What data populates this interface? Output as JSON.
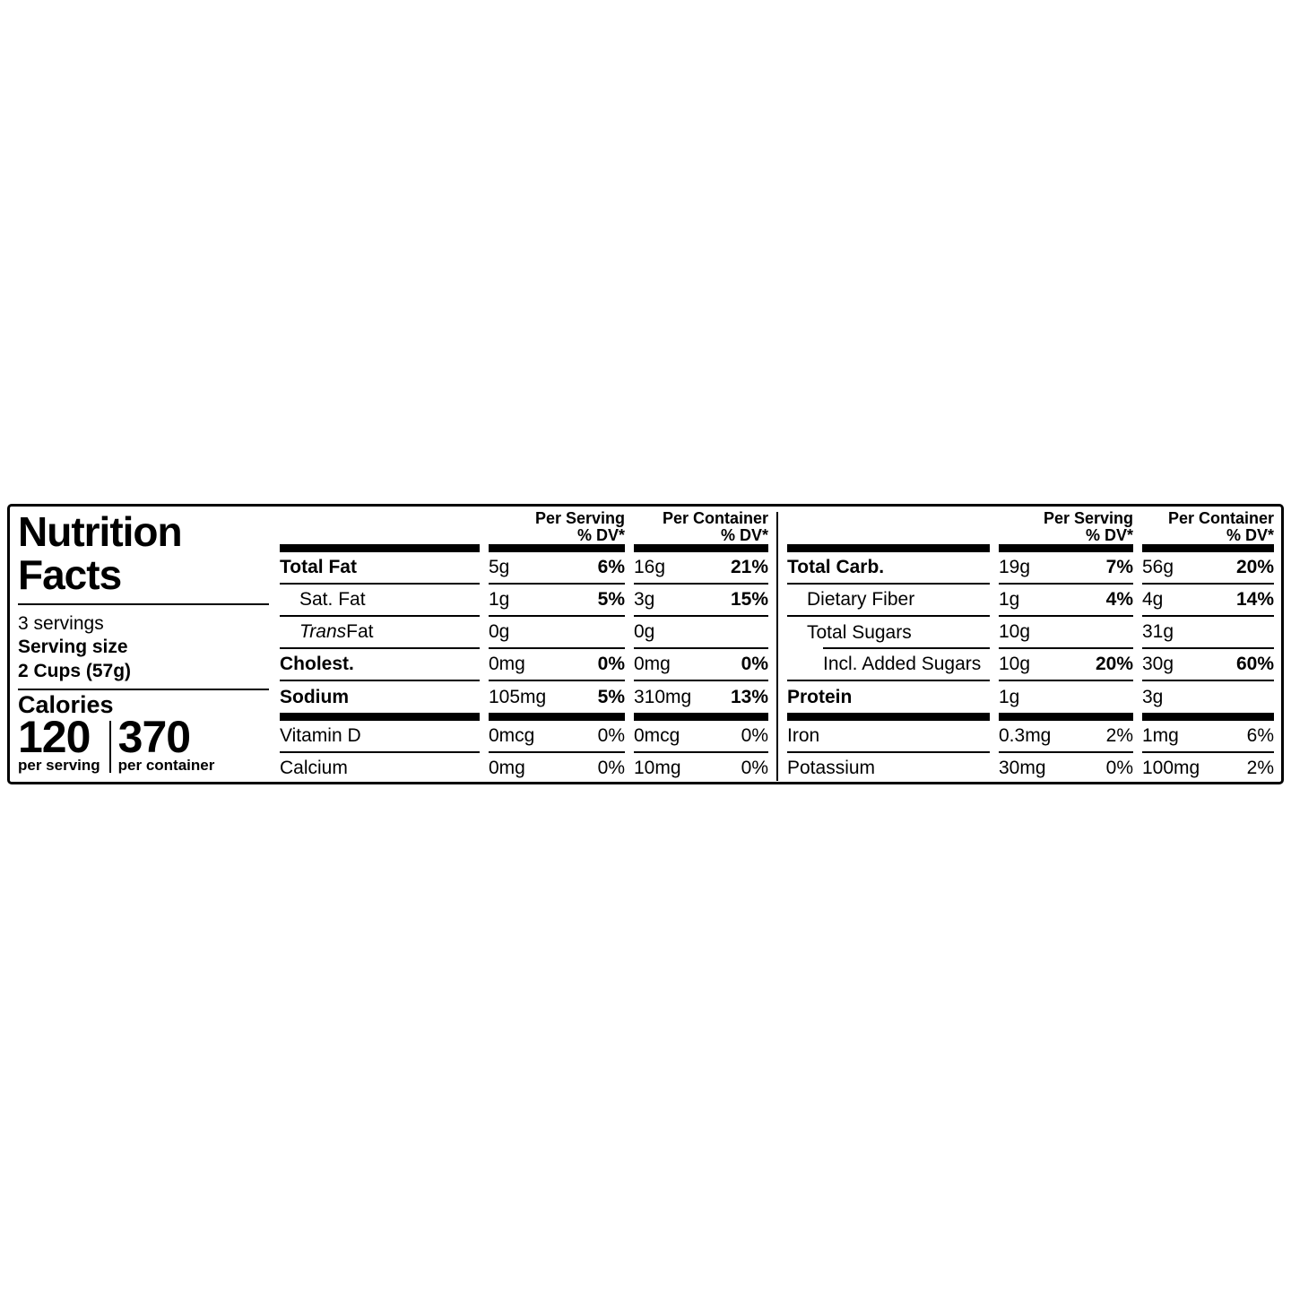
{
  "colors": {
    "text": "#000000",
    "background": "#ffffff",
    "border": "#000000"
  },
  "label": {
    "title_line1": "Nutrition",
    "title_line2": "Facts",
    "servings_per_container": "3 servings",
    "serving_size_label": "Serving size",
    "serving_size_value": "2 Cups (57g)",
    "calories": {
      "label": "Calories",
      "per_serving_value": "120",
      "per_serving_label": "per serving",
      "per_container_value": "370",
      "per_container_label": "per container"
    },
    "column_headers": {
      "per_serving": "Per Serving",
      "per_container": "Per Container",
      "dv": "% DV*"
    },
    "fat_table": {
      "rows": [
        {
          "name": "Total Fat",
          "serving_amount": "5g",
          "serving_dv": "6%",
          "container_amount": "16g",
          "container_dv": "21%"
        },
        {
          "name": "Sat. Fat",
          "serving_amount": "1g",
          "serving_dv": "5%",
          "container_amount": "3g",
          "container_dv": "15%"
        },
        {
          "name_italic": "Trans",
          "name_rest": " Fat",
          "serving_amount": "0g",
          "serving_dv": "",
          "container_amount": "0g",
          "container_dv": ""
        },
        {
          "name": "Cholest.",
          "serving_amount": "0mg",
          "serving_dv": "0%",
          "container_amount": "0mg",
          "container_dv": "0%"
        },
        {
          "name": "Sodium",
          "serving_amount": "105mg",
          "serving_dv": "5%",
          "container_amount": "310mg",
          "container_dv": "13%"
        },
        {
          "name": "Vitamin D",
          "serving_amount": "0mcg",
          "serving_dv": "0%",
          "container_amount": "0mcg",
          "container_dv": "0%"
        },
        {
          "name": "Calcium",
          "serving_amount": "0mg",
          "serving_dv": "0%",
          "container_amount": "10mg",
          "container_dv": "0%"
        }
      ]
    },
    "carb_table": {
      "rows": [
        {
          "name": "Total Carb.",
          "serving_amount": "19g",
          "serving_dv": "7%",
          "container_amount": "56g",
          "container_dv": "20%"
        },
        {
          "name": "Dietary Fiber",
          "serving_amount": "1g",
          "serving_dv": "4%",
          "container_amount": "4g",
          "container_dv": "14%"
        },
        {
          "name": "Total Sugars",
          "serving_amount": "10g",
          "serving_dv": "",
          "container_amount": "31g",
          "container_dv": ""
        },
        {
          "name": "Incl. Added Sugars",
          "serving_amount": "10g",
          "serving_dv": "20%",
          "container_amount": "30g",
          "container_dv": "60%"
        },
        {
          "name": "Protein",
          "serving_amount": "1g",
          "serving_dv": "",
          "container_amount": "3g",
          "container_dv": ""
        },
        {
          "name": "Iron",
          "serving_amount": "0.3mg",
          "serving_dv": "2%",
          "container_amount": "1mg",
          "container_dv": "6%"
        },
        {
          "name": "Potassium",
          "serving_amount": "30mg",
          "serving_dv": "0%",
          "container_amount": "100mg",
          "container_dv": "2%"
        }
      ]
    }
  }
}
